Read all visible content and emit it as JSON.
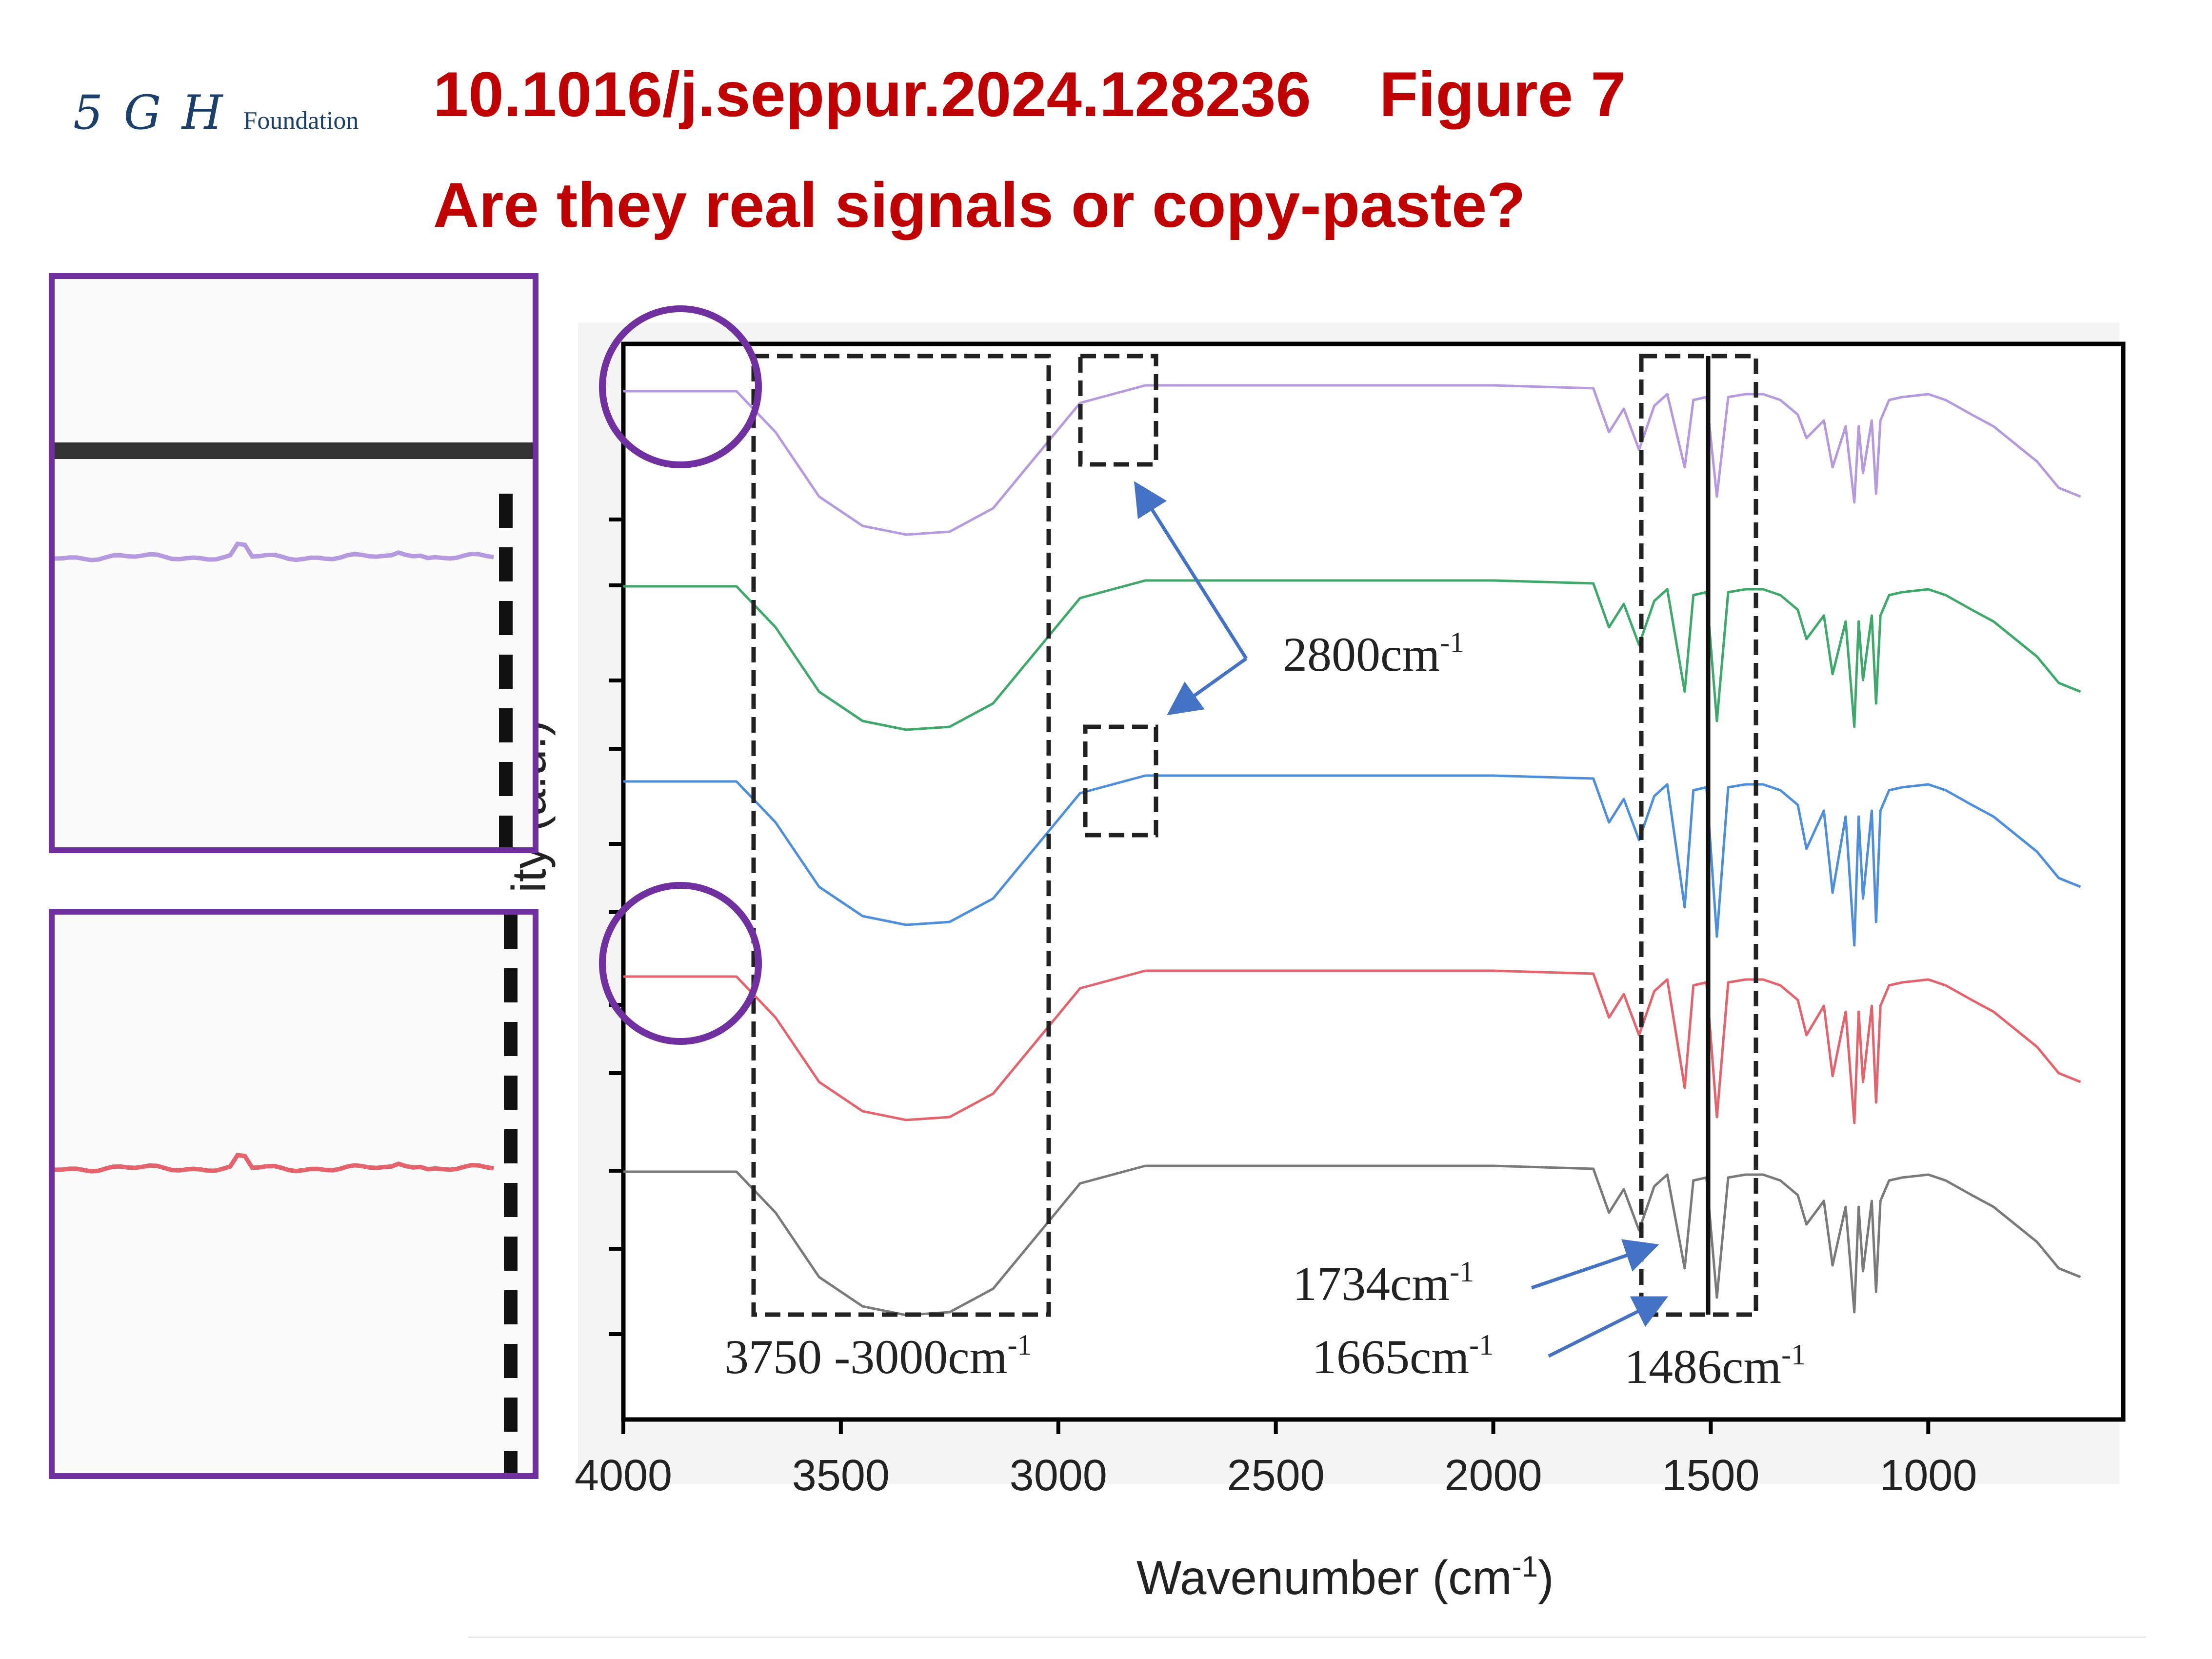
{
  "header": {
    "logo_mark": "5 G H",
    "logo_word": "Foundation",
    "doi": "10.1016/j.seppur.2024.128236",
    "figure": "Figure 7",
    "question": "Are they real signals or copy-paste?"
  },
  "colors": {
    "title_red": "#c00000",
    "highlight_purple": "#7030a0",
    "arrow_blue": "#4472c4",
    "series": [
      "#b59ae0",
      "#3fa96b",
      "#4d8fdc",
      "#e5636c",
      "#7a7a7a"
    ]
  },
  "chart_data": {
    "type": "line",
    "title": "",
    "xlabel": "Wavenumber (cm",
    "xlabel_sup": "-1",
    "xlabel_close": ")",
    "ylabel_partial": "ity (a.u.)",
    "x_ticks": [
      "4000",
      "3500",
      "3000",
      "2500",
      "2000",
      "1500",
      "1000"
    ],
    "xlim": [
      4000,
      600
    ],
    "x_reversed": true,
    "y_ticks_unlabeled": true,
    "grid": false,
    "series": [
      {
        "color": "#b59ae0",
        "offset": 0,
        "x": [
          4000,
          3740,
          3650,
          3550,
          3450,
          3350,
          3250,
          3150,
          3050,
          2950,
          2800,
          2500,
          2000,
          1770,
          1734,
          1700,
          1665,
          1630,
          1600,
          1560,
          1540,
          1510,
          1486,
          1460,
          1420,
          1380,
          1340,
          1300,
          1280,
          1240,
          1220,
          1190,
          1170,
          1160,
          1150,
          1130,
          1120,
          1110,
          1090,
          1060,
          1000,
          960,
          900,
          850,
          800,
          750,
          700,
          650
        ],
        "y": [
          0.98,
          0.98,
          0.84,
          0.62,
          0.52,
          0.49,
          0.5,
          0.58,
          0.76,
          0.94,
          1.0,
          1.0,
          1.0,
          0.99,
          0.84,
          0.92,
          0.78,
          0.93,
          0.97,
          0.72,
          0.95,
          0.96,
          0.62,
          0.96,
          0.97,
          0.97,
          0.95,
          0.9,
          0.82,
          0.88,
          0.72,
          0.86,
          0.6,
          0.86,
          0.7,
          0.88,
          0.63,
          0.88,
          0.95,
          0.96,
          0.97,
          0.95,
          0.9,
          0.86,
          0.8,
          0.74,
          0.65,
          0.62
        ]
      },
      {
        "color": "#3fa96b",
        "offset": 1,
        "x": [
          4000,
          3740,
          3650,
          3550,
          3450,
          3350,
          3250,
          3150,
          3050,
          2950,
          2800,
          2500,
          2000,
          1770,
          1734,
          1700,
          1665,
          1630,
          1600,
          1560,
          1540,
          1510,
          1486,
          1460,
          1420,
          1380,
          1340,
          1300,
          1280,
          1240,
          1220,
          1190,
          1170,
          1160,
          1150,
          1130,
          1120,
          1110,
          1090,
          1060,
          1000,
          960,
          900,
          850,
          800,
          750,
          700,
          650
        ],
        "y": [
          0.98,
          0.98,
          0.84,
          0.62,
          0.52,
          0.49,
          0.5,
          0.58,
          0.76,
          0.94,
          1.0,
          1.0,
          1.0,
          0.99,
          0.84,
          0.92,
          0.78,
          0.93,
          0.97,
          0.62,
          0.95,
          0.96,
          0.52,
          0.96,
          0.97,
          0.97,
          0.95,
          0.9,
          0.8,
          0.88,
          0.68,
          0.86,
          0.5,
          0.86,
          0.66,
          0.88,
          0.58,
          0.88,
          0.95,
          0.96,
          0.97,
          0.95,
          0.9,
          0.86,
          0.8,
          0.74,
          0.65,
          0.62
        ]
      },
      {
        "color": "#4d8fdc",
        "offset": 2,
        "x": [
          4000,
          3740,
          3650,
          3550,
          3450,
          3350,
          3250,
          3150,
          3050,
          2950,
          2800,
          2500,
          2000,
          1770,
          1734,
          1700,
          1665,
          1630,
          1600,
          1560,
          1540,
          1510,
          1486,
          1460,
          1420,
          1380,
          1340,
          1300,
          1280,
          1240,
          1220,
          1190,
          1170,
          1160,
          1150,
          1130,
          1120,
          1110,
          1090,
          1060,
          1000,
          960,
          900,
          850,
          800,
          750,
          700,
          650
        ],
        "y": [
          0.98,
          0.98,
          0.84,
          0.62,
          0.52,
          0.49,
          0.5,
          0.58,
          0.76,
          0.94,
          1.0,
          1.0,
          1.0,
          0.99,
          0.84,
          0.92,
          0.78,
          0.93,
          0.97,
          0.55,
          0.95,
          0.96,
          0.45,
          0.96,
          0.97,
          0.97,
          0.95,
          0.9,
          0.75,
          0.88,
          0.6,
          0.86,
          0.42,
          0.86,
          0.58,
          0.88,
          0.5,
          0.88,
          0.95,
          0.96,
          0.97,
          0.95,
          0.9,
          0.86,
          0.8,
          0.74,
          0.65,
          0.62
        ]
      },
      {
        "color": "#e5636c",
        "offset": 3,
        "x": [
          4000,
          3740,
          3650,
          3550,
          3450,
          3350,
          3250,
          3150,
          3050,
          2950,
          2800,
          2500,
          2000,
          1770,
          1734,
          1700,
          1665,
          1630,
          1600,
          1560,
          1540,
          1510,
          1486,
          1460,
          1420,
          1380,
          1340,
          1300,
          1280,
          1240,
          1220,
          1190,
          1170,
          1160,
          1150,
          1130,
          1120,
          1110,
          1090,
          1060,
          1000,
          960,
          900,
          850,
          800,
          750,
          700,
          650
        ],
        "y": [
          0.98,
          0.98,
          0.84,
          0.62,
          0.52,
          0.49,
          0.5,
          0.58,
          0.76,
          0.94,
          1.0,
          1.0,
          1.0,
          0.99,
          0.84,
          0.92,
          0.78,
          0.93,
          0.97,
          0.6,
          0.95,
          0.96,
          0.5,
          0.96,
          0.97,
          0.97,
          0.95,
          0.9,
          0.78,
          0.88,
          0.64,
          0.86,
          0.48,
          0.86,
          0.62,
          0.88,
          0.55,
          0.88,
          0.95,
          0.96,
          0.97,
          0.95,
          0.9,
          0.86,
          0.8,
          0.74,
          0.65,
          0.62
        ]
      },
      {
        "color": "#7a7a7a",
        "offset": 4,
        "x": [
          4000,
          3740,
          3650,
          3550,
          3450,
          3350,
          3250,
          3150,
          3050,
          2950,
          2800,
          2500,
          2000,
          1770,
          1734,
          1700,
          1665,
          1630,
          1600,
          1560,
          1540,
          1510,
          1486,
          1460,
          1420,
          1380,
          1340,
          1300,
          1280,
          1240,
          1220,
          1190,
          1170,
          1160,
          1150,
          1130,
          1120,
          1110,
          1090,
          1060,
          1000,
          960,
          900,
          850,
          800,
          750,
          700,
          650
        ],
        "y": [
          0.98,
          0.98,
          0.84,
          0.62,
          0.52,
          0.49,
          0.5,
          0.58,
          0.76,
          0.94,
          1.0,
          1.0,
          1.0,
          0.99,
          0.84,
          0.92,
          0.78,
          0.93,
          0.97,
          0.65,
          0.95,
          0.96,
          0.55,
          0.96,
          0.97,
          0.97,
          0.95,
          0.9,
          0.8,
          0.88,
          0.66,
          0.86,
          0.5,
          0.86,
          0.64,
          0.88,
          0.57,
          0.88,
          0.95,
          0.96,
          0.97,
          0.95,
          0.9,
          0.86,
          0.8,
          0.74,
          0.65,
          0.62
        ]
      }
    ],
    "annotations": {
      "band_oh": "3750 -3000cm",
      "band_oh_sup": "-1",
      "peak_2800": "2800cm",
      "peak_2800_sup": "-1",
      "peak_1734": "1734cm",
      "peak_1734_sup": "-1",
      "peak_1665": "1665cm",
      "peak_1665_sup": "-1",
      "peak_1486": "1486cm",
      "peak_1486_sup": "-1"
    }
  }
}
